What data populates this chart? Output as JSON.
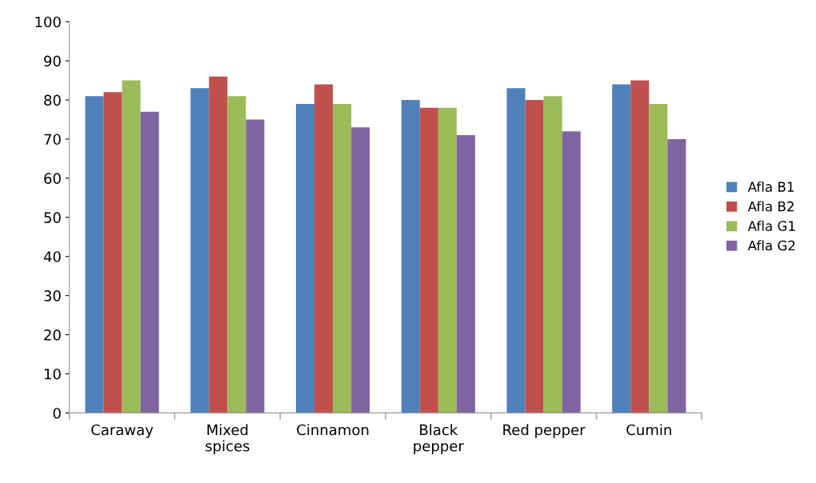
{
  "chart_data": {
    "type": "bar",
    "categories": [
      "Caraway",
      "Mixed\nspices",
      "Cinnamon",
      "Black\npepper",
      "Red pepper",
      "Cumin"
    ],
    "series": [
      {
        "name": "Afla B1",
        "color": "#4f81bd",
        "values": [
          81,
          83,
          79,
          80,
          83,
          84
        ]
      },
      {
        "name": "Afla B2",
        "color": "#c0504d",
        "values": [
          82,
          86,
          84,
          78,
          80,
          85
        ]
      },
      {
        "name": "Afla G1",
        "color": "#9bbb59",
        "values": [
          85,
          81,
          79,
          78,
          81,
          79
        ]
      },
      {
        "name": "Afla G2",
        "color": "#8064a2",
        "values": [
          77,
          75,
          73,
          71,
          72,
          70
        ]
      }
    ],
    "ylim": [
      0,
      100
    ],
    "yticks": [
      0,
      10,
      20,
      30,
      40,
      50,
      60,
      70,
      80,
      90,
      100
    ],
    "grid": false,
    "legend": "right"
  }
}
